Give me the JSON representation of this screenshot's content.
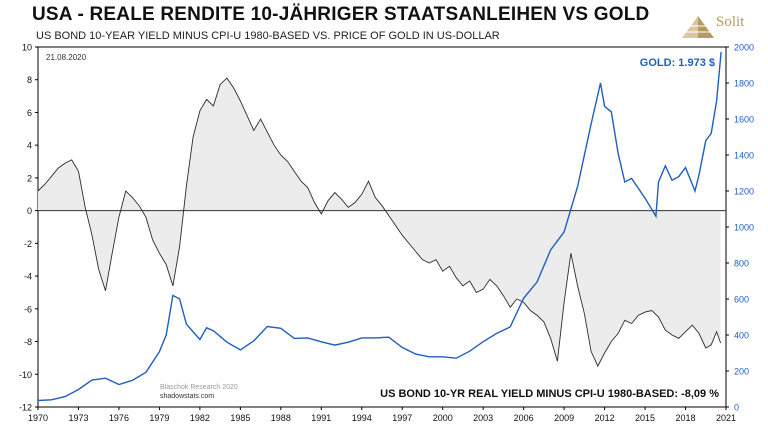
{
  "header": {
    "title": "USA - REALE RENDITE 10-JÄHRIGER STAATSANLEIHEN VS GOLD",
    "subtitle": "US BOND 10-YEAR YIELD MINUS CPI-U 1980-BASED VS. PRICE OF GOLD IN US-DOLLAR",
    "logo_text": "Solit",
    "date": "21.08.2020"
  },
  "colors": {
    "yield_line": "#2b2b2b",
    "yield_fill": "#ececec",
    "gold_line": "#1f5fbf",
    "gold_label": "#1f5fbf",
    "logo": "#b59a62"
  },
  "chart_data": {
    "type": "line",
    "title": "USA - REALE RENDITE 10-JÄHRIGER STAATSANLEIHEN VS GOLD",
    "x_ticks": [
      "1970",
      "1973",
      "1976",
      "1979",
      "1982",
      "1985",
      "1988",
      "1991",
      "1994",
      "1997",
      "2000",
      "2003",
      "2006",
      "2009",
      "2012",
      "2015",
      "2018",
      "2021"
    ],
    "xlim": [
      1970,
      2021
    ],
    "y_left": {
      "lim": [
        -12,
        10
      ],
      "ticks": [
        "10",
        "8",
        "6",
        "4",
        "2",
        "0",
        "-2",
        "-4",
        "-6",
        "-8",
        "-10",
        "-12"
      ]
    },
    "y_right": {
      "lim": [
        0,
        2000
      ],
      "ticks": [
        "2000",
        "1800",
        "1600",
        "1400",
        "1200",
        "1000",
        "800",
        "600",
        "400",
        "200",
        "0"
      ]
    },
    "grid": false,
    "annotations": {
      "gold_label": "GOLD: 1.973 $",
      "yield_label": "US BOND 10-YR REAL YIELD MINUS CPI-U 1980-BASED: -8,09 %",
      "source_1": "Blaschok Research 2020",
      "source_2": "shadowstats.com"
    },
    "series": [
      {
        "axis": "left",
        "points": [
          [
            1970.0,
            1.2
          ],
          [
            1970.5,
            1.6
          ],
          [
            1971.0,
            2.1
          ],
          [
            1971.5,
            2.6
          ],
          [
            1972.0,
            2.9
          ],
          [
            1972.5,
            3.1
          ],
          [
            1973.0,
            2.4
          ],
          [
            1973.5,
            0.2
          ],
          [
            1974.0,
            -1.5
          ],
          [
            1974.5,
            -3.6
          ],
          [
            1975.0,
            -4.9
          ],
          [
            1975.5,
            -2.6
          ],
          [
            1976.0,
            -0.4
          ],
          [
            1976.5,
            1.2
          ],
          [
            1977.0,
            0.8
          ],
          [
            1977.5,
            0.3
          ],
          [
            1978.0,
            -0.4
          ],
          [
            1978.5,
            -1.8
          ],
          [
            1979.0,
            -2.6
          ],
          [
            1979.5,
            -3.3
          ],
          [
            1980.0,
            -4.6
          ],
          [
            1980.5,
            -2.2
          ],
          [
            1981.0,
            1.5
          ],
          [
            1981.5,
            4.5
          ],
          [
            1982.0,
            6.1
          ],
          [
            1982.5,
            6.8
          ],
          [
            1983.0,
            6.4
          ],
          [
            1983.5,
            7.7
          ],
          [
            1984.0,
            8.1
          ],
          [
            1984.5,
            7.5
          ],
          [
            1985.0,
            6.7
          ],
          [
            1985.5,
            5.8
          ],
          [
            1986.0,
            4.9
          ],
          [
            1986.5,
            5.6
          ],
          [
            1987.0,
            4.8
          ],
          [
            1987.5,
            4.0
          ],
          [
            1988.0,
            3.4
          ],
          [
            1988.5,
            3.0
          ],
          [
            1989.0,
            2.4
          ],
          [
            1989.5,
            1.8
          ],
          [
            1990.0,
            1.4
          ],
          [
            1990.5,
            0.5
          ],
          [
            1991.0,
            -0.2
          ],
          [
            1991.5,
            0.6
          ],
          [
            1992.0,
            1.1
          ],
          [
            1992.5,
            0.7
          ],
          [
            1993.0,
            0.2
          ],
          [
            1993.5,
            0.5
          ],
          [
            1994.0,
            1.0
          ],
          [
            1994.5,
            1.8
          ],
          [
            1995.0,
            0.8
          ],
          [
            1995.5,
            0.3
          ],
          [
            1996.0,
            -0.3
          ],
          [
            1996.5,
            -0.9
          ],
          [
            1997.0,
            -1.5
          ],
          [
            1997.5,
            -2.0
          ],
          [
            1998.0,
            -2.5
          ],
          [
            1998.5,
            -3.0
          ],
          [
            1999.0,
            -3.2
          ],
          [
            1999.5,
            -3.0
          ],
          [
            2000.0,
            -3.7
          ],
          [
            2000.5,
            -3.4
          ],
          [
            2001.0,
            -4.1
          ],
          [
            2001.5,
            -4.6
          ],
          [
            2002.0,
            -4.3
          ],
          [
            2002.5,
            -5.0
          ],
          [
            2003.0,
            -4.8
          ],
          [
            2003.5,
            -4.2
          ],
          [
            2004.0,
            -4.6
          ],
          [
            2004.5,
            -5.2
          ],
          [
            2005.0,
            -5.9
          ],
          [
            2005.5,
            -5.4
          ],
          [
            2006.0,
            -5.6
          ],
          [
            2006.5,
            -6.1
          ],
          [
            2007.0,
            -6.4
          ],
          [
            2007.5,
            -6.8
          ],
          [
            2008.0,
            -7.8
          ],
          [
            2008.5,
            -9.2
          ],
          [
            2009.0,
            -5.6
          ],
          [
            2009.5,
            -2.6
          ],
          [
            2010.0,
            -4.6
          ],
          [
            2010.5,
            -6.3
          ],
          [
            2011.0,
            -8.6
          ],
          [
            2011.5,
            -9.5
          ],
          [
            2012.0,
            -8.7
          ],
          [
            2012.5,
            -8.0
          ],
          [
            2013.0,
            -7.5
          ],
          [
            2013.5,
            -6.7
          ],
          [
            2014.0,
            -6.9
          ],
          [
            2014.5,
            -6.4
          ],
          [
            2015.0,
            -6.2
          ],
          [
            2015.5,
            -6.1
          ],
          [
            2016.0,
            -6.5
          ],
          [
            2016.5,
            -7.3
          ],
          [
            2017.0,
            -7.6
          ],
          [
            2017.5,
            -7.8
          ],
          [
            2018.0,
            -7.4
          ],
          [
            2018.5,
            -7.0
          ],
          [
            2019.0,
            -7.5
          ],
          [
            2019.5,
            -8.4
          ],
          [
            2019.9,
            -8.2
          ],
          [
            2020.3,
            -7.4
          ],
          [
            2020.6,
            -8.09
          ]
        ]
      },
      {
        "axis": "right",
        "points": [
          [
            1970.0,
            36
          ],
          [
            1971.0,
            40
          ],
          [
            1972.0,
            58
          ],
          [
            1973.0,
            97
          ],
          [
            1974.0,
            150
          ],
          [
            1975.0,
            160
          ],
          [
            1976.0,
            125
          ],
          [
            1977.0,
            148
          ],
          [
            1978.0,
            193
          ],
          [
            1979.0,
            307
          ],
          [
            1979.5,
            400
          ],
          [
            1980.0,
            620
          ],
          [
            1980.5,
            600
          ],
          [
            1981.0,
            460
          ],
          [
            1982.0,
            375
          ],
          [
            1982.5,
            440
          ],
          [
            1983.0,
            424
          ],
          [
            1984.0,
            360
          ],
          [
            1985.0,
            317
          ],
          [
            1986.0,
            368
          ],
          [
            1987.0,
            447
          ],
          [
            1988.0,
            437
          ],
          [
            1989.0,
            381
          ],
          [
            1990.0,
            384
          ],
          [
            1991.0,
            362
          ],
          [
            1992.0,
            344
          ],
          [
            1993.0,
            360
          ],
          [
            1994.0,
            384
          ],
          [
            1995.0,
            384
          ],
          [
            1996.0,
            388
          ],
          [
            1997.0,
            331
          ],
          [
            1998.0,
            294
          ],
          [
            1999.0,
            279
          ],
          [
            2000.0,
            279
          ],
          [
            2001.0,
            271
          ],
          [
            2002.0,
            310
          ],
          [
            2003.0,
            363
          ],
          [
            2004.0,
            409
          ],
          [
            2005.0,
            445
          ],
          [
            2006.0,
            604
          ],
          [
            2007.0,
            695
          ],
          [
            2008.0,
            872
          ],
          [
            2009.0,
            973
          ],
          [
            2010.0,
            1225
          ],
          [
            2011.0,
            1572
          ],
          [
            2011.7,
            1800
          ],
          [
            2012.0,
            1670
          ],
          [
            2012.5,
            1640
          ],
          [
            2013.0,
            1410
          ],
          [
            2013.5,
            1250
          ],
          [
            2014.0,
            1270
          ],
          [
            2015.0,
            1160
          ],
          [
            2015.8,
            1060
          ],
          [
            2016.0,
            1250
          ],
          [
            2016.5,
            1340
          ],
          [
            2017.0,
            1260
          ],
          [
            2017.5,
            1280
          ],
          [
            2018.0,
            1330
          ],
          [
            2018.7,
            1200
          ],
          [
            2019.0,
            1290
          ],
          [
            2019.5,
            1480
          ],
          [
            2019.9,
            1520
          ],
          [
            2020.3,
            1700
          ],
          [
            2020.64,
            1973
          ]
        ]
      }
    ]
  }
}
